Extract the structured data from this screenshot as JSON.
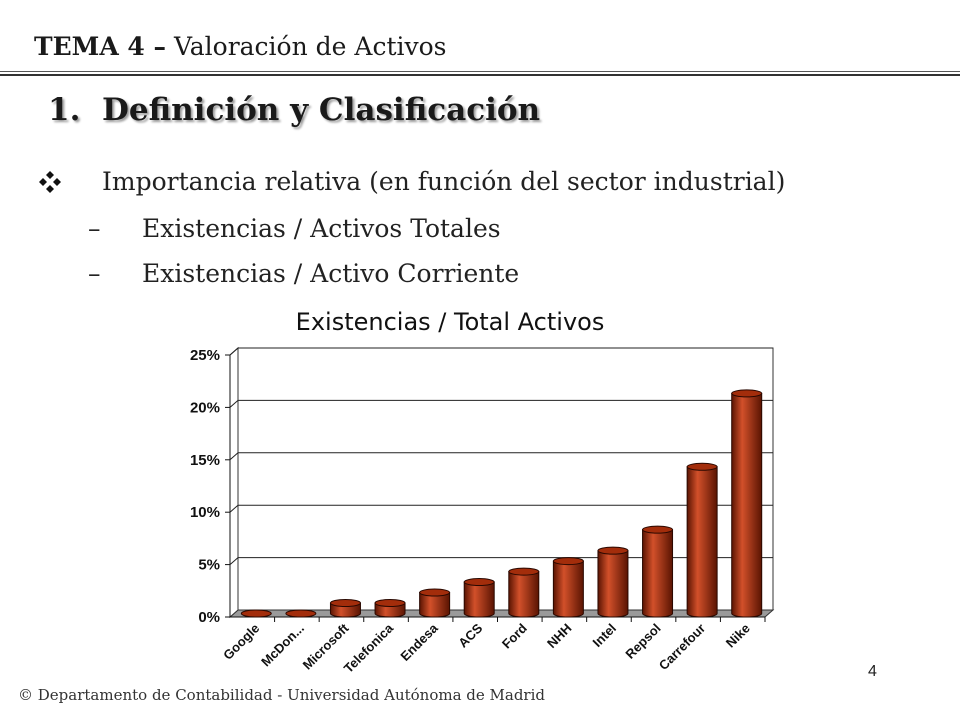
{
  "header": {
    "tema": "TEMA 4 –",
    "subtitle": "Valoración de Activos"
  },
  "section": {
    "number": "1.",
    "title": "Definición y Clasificación"
  },
  "bullet": {
    "icon": "four-diamond-bullet-icon",
    "text": "Importancia relativa (en función del sector industrial)"
  },
  "sub_items": [
    {
      "dash": "–",
      "text": "Existencias / Activos Totales"
    },
    {
      "dash": "–",
      "text": "Existencias / Activo Corriente"
    }
  ],
  "footer": "© Departamento de Contabilidad - Universidad Autónoma de Madrid",
  "page_number": "4",
  "colors": {
    "bar": "#a32d0b",
    "bar_dark": "#5a1402",
    "bar_light": "#d2502a"
  },
  "chart_data": {
    "type": "bar",
    "style": "3d-cylinder",
    "title": "Existencias / Total Activos",
    "xlabel": "",
    "ylabel": "",
    "categories": [
      "Google",
      "McDon...",
      "Microsoft",
      "Telefonica",
      "Endesa",
      "ACS",
      "Ford",
      "NHH",
      "Intel",
      "Repsol",
      "Carrefour",
      "Nike"
    ],
    "values": [
      0,
      0,
      1,
      1,
      2,
      3,
      4,
      5,
      6,
      8,
      14,
      21
    ],
    "value_unit": "%",
    "ylim": [
      0,
      25
    ],
    "yticks": [
      "0%",
      "5%",
      "10%",
      "15%",
      "20%",
      "25%"
    ],
    "grid": true,
    "legend": "none"
  }
}
